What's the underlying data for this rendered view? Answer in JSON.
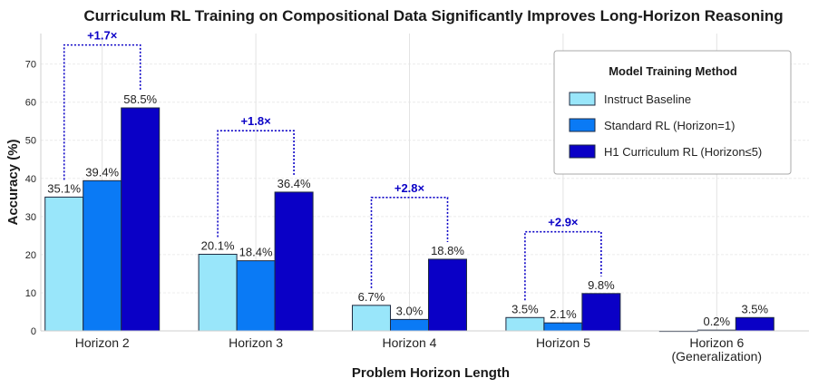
{
  "chart_data": {
    "type": "bar",
    "title": "Curriculum RL Training on Compositional Data Significantly Improves Long-Horizon Reasoning",
    "xlabel": "Problem Horizon Length",
    "ylabel": "Accuracy (%)",
    "ylim": [
      0,
      78
    ],
    "yticks": [
      0,
      10,
      20,
      30,
      40,
      50,
      60,
      70
    ],
    "grid": true,
    "categories": [
      [
        "Horizon 2"
      ],
      [
        "Horizon 3"
      ],
      [
        "Horizon 4"
      ],
      [
        "Horizon 5"
      ],
      [
        "Horizon 6",
        "(Generalization)"
      ]
    ],
    "series": [
      {
        "name": "Instruct Baseline",
        "color": "#99e6fa",
        "values": [
          35.1,
          20.1,
          6.7,
          3.5,
          0.0
        ],
        "labels": [
          "35.1%",
          "20.1%",
          "6.7%",
          "3.5%",
          ""
        ]
      },
      {
        "name": "Standard RL (Horizon=1)",
        "color": "#0a7af5",
        "values": [
          39.4,
          18.4,
          3.0,
          2.1,
          0.2
        ],
        "labels": [
          "39.4%",
          "18.4%",
          "3.0%",
          "2.1%",
          "0.2%"
        ]
      },
      {
        "name": "H1 Curriculum RL (Horizon≤5)",
        "color": "#0a00c6",
        "values": [
          58.5,
          36.4,
          18.8,
          9.8,
          3.5
        ],
        "labels": [
          "58.5%",
          "36.4%",
          "18.8%",
          "9.8%",
          "3.5%"
        ]
      }
    ],
    "annotations": [
      {
        "category": 0,
        "text": "+1.7×",
        "bracket_top": 75.0
      },
      {
        "category": 1,
        "text": "+1.8×",
        "bracket_top": 52.5
      },
      {
        "category": 2,
        "text": "+2.8×",
        "bracket_top": 35.0
      },
      {
        "category": 3,
        "text": "+2.9×",
        "bracket_top": 26.0
      }
    ],
    "annotation_color": "#0a00c6",
    "legend": {
      "title": "Model Training Method",
      "position": "top-right"
    }
  }
}
